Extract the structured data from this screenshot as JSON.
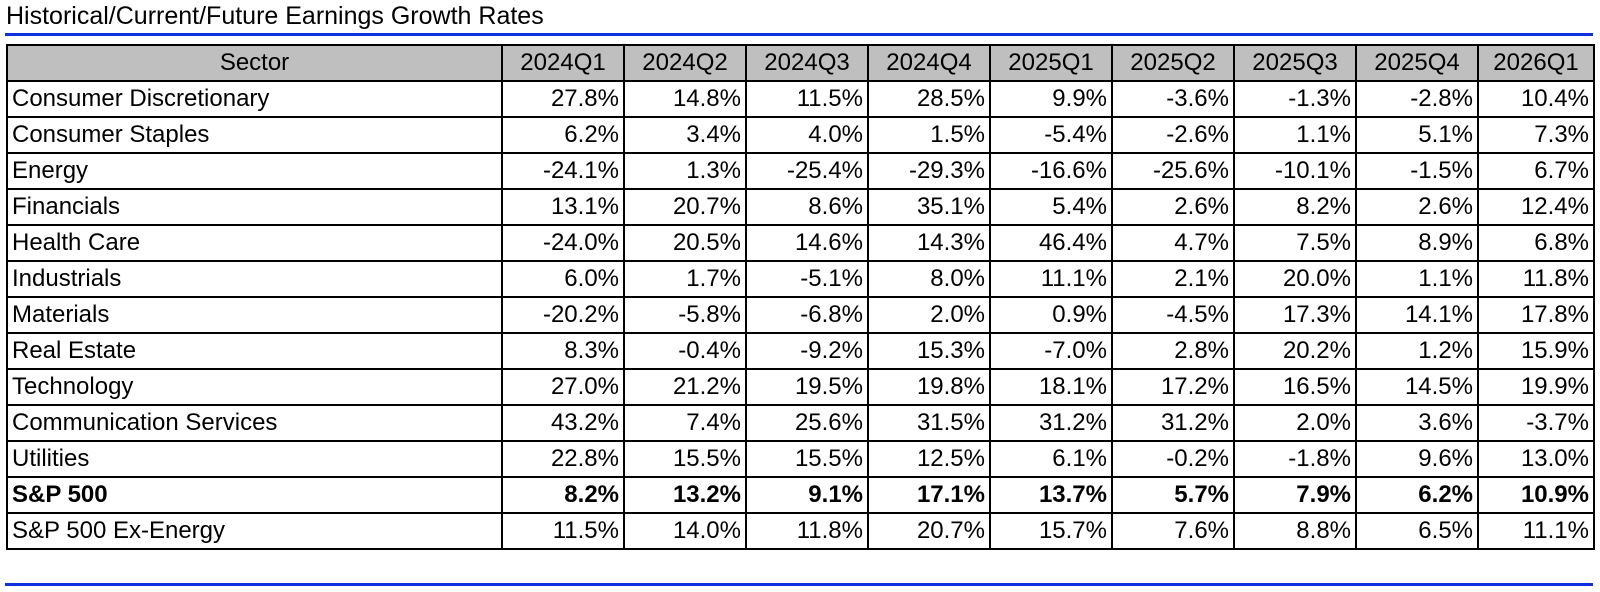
{
  "title": "Historical/Current/Future Earnings Growth Rates",
  "colors": {
    "accent_rule": "#1030e0",
    "header_bg": "#bfbfbf",
    "border": "#000000"
  },
  "table": {
    "headers": [
      "Sector",
      "2024Q1",
      "2024Q2",
      "2024Q3",
      "2024Q4",
      "2025Q1",
      "2025Q2",
      "2025Q3",
      "2025Q4",
      "2026Q1"
    ],
    "rows": [
      {
        "sector": "Consumer Discretionary",
        "values": [
          "27.8%",
          "14.8%",
          "11.5%",
          "28.5%",
          "9.9%",
          "-3.6%",
          "-1.3%",
          "-2.8%",
          "10.4%"
        ],
        "bold": false
      },
      {
        "sector": "Consumer Staples",
        "values": [
          "6.2%",
          "3.4%",
          "4.0%",
          "1.5%",
          "-5.4%",
          "-2.6%",
          "1.1%",
          "5.1%",
          "7.3%"
        ],
        "bold": false
      },
      {
        "sector": "Energy",
        "values": [
          "-24.1%",
          "1.3%",
          "-25.4%",
          "-29.3%",
          "-16.6%",
          "-25.6%",
          "-10.1%",
          "-1.5%",
          "6.7%"
        ],
        "bold": false
      },
      {
        "sector": "Financials",
        "values": [
          "13.1%",
          "20.7%",
          "8.6%",
          "35.1%",
          "5.4%",
          "2.6%",
          "8.2%",
          "2.6%",
          "12.4%"
        ],
        "bold": false
      },
      {
        "sector": "Health Care",
        "values": [
          "-24.0%",
          "20.5%",
          "14.6%",
          "14.3%",
          "46.4%",
          "4.7%",
          "7.5%",
          "8.9%",
          "6.8%"
        ],
        "bold": false
      },
      {
        "sector": "Industrials",
        "values": [
          "6.0%",
          "1.7%",
          "-5.1%",
          "8.0%",
          "11.1%",
          "2.1%",
          "20.0%",
          "1.1%",
          "11.8%"
        ],
        "bold": false
      },
      {
        "sector": "Materials",
        "values": [
          "-20.2%",
          "-5.8%",
          "-6.8%",
          "2.0%",
          "0.9%",
          "-4.5%",
          "17.3%",
          "14.1%",
          "17.8%"
        ],
        "bold": false
      },
      {
        "sector": "Real Estate",
        "values": [
          "8.3%",
          "-0.4%",
          "-9.2%",
          "15.3%",
          "-7.0%",
          "2.8%",
          "20.2%",
          "1.2%",
          "15.9%"
        ],
        "bold": false
      },
      {
        "sector": "Technology",
        "values": [
          "27.0%",
          "21.2%",
          "19.5%",
          "19.8%",
          "18.1%",
          "17.2%",
          "16.5%",
          "14.5%",
          "19.9%"
        ],
        "bold": false
      },
      {
        "sector": "Communication Services",
        "values": [
          "43.2%",
          "7.4%",
          "25.6%",
          "31.5%",
          "31.2%",
          "31.2%",
          "2.0%",
          "3.6%",
          "-3.7%"
        ],
        "bold": false
      },
      {
        "sector": "Utilities",
        "values": [
          "22.8%",
          "15.5%",
          "15.5%",
          "12.5%",
          "6.1%",
          "-0.2%",
          "-1.8%",
          "9.6%",
          "13.0%"
        ],
        "bold": false
      },
      {
        "sector": "S&P 500",
        "values": [
          "8.2%",
          "13.2%",
          "9.1%",
          "17.1%",
          "13.7%",
          "5.7%",
          "7.9%",
          "6.2%",
          "10.9%"
        ],
        "bold": true
      },
      {
        "sector": "S&P 500 Ex-Energy",
        "values": [
          "11.5%",
          "14.0%",
          "11.8%",
          "20.7%",
          "15.7%",
          "7.6%",
          "8.8%",
          "6.5%",
          "11.1%"
        ],
        "bold": false
      }
    ]
  }
}
